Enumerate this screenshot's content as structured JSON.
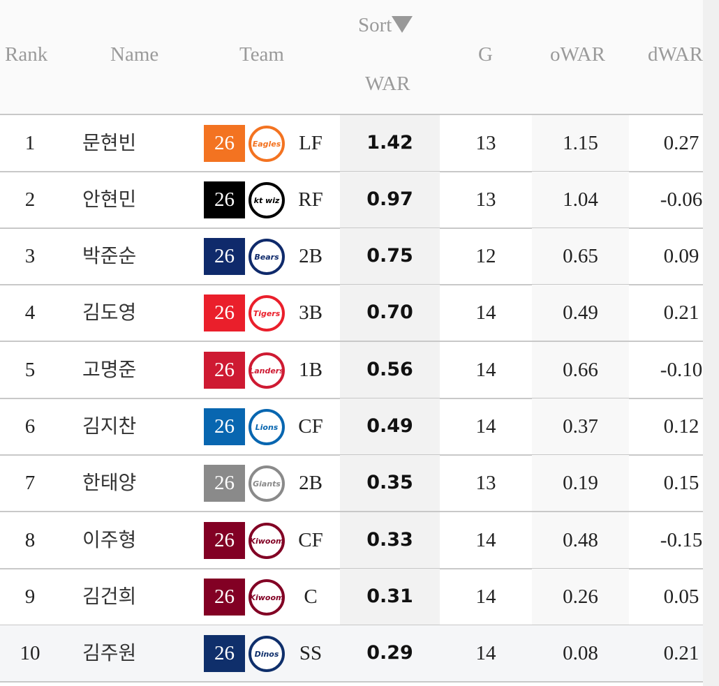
{
  "header": {
    "rank": "Rank",
    "name": "Name",
    "team": "Team",
    "sort": "Sort",
    "sort_icon": "triangle-down",
    "war": "WAR",
    "g": "G",
    "owar": "oWAR",
    "dwar": "dWAR"
  },
  "rows": [
    {
      "rank": "1",
      "name": "문현빈",
      "age": "26",
      "team": "Eagles",
      "team_color": "#f37321",
      "pos": "LF",
      "war": "1.42",
      "g": "13",
      "owar": "1.15",
      "dwar": "0.27"
    },
    {
      "rank": "2",
      "name": "안현민",
      "age": "26",
      "team": "kt wiz",
      "team_color": "#000000",
      "pos": "RF",
      "war": "0.97",
      "g": "13",
      "owar": "1.04",
      "dwar": "-0.06"
    },
    {
      "rank": "3",
      "name": "박준순",
      "age": "26",
      "team": "Bears",
      "team_color": "#0f2a6b",
      "pos": "2B",
      "war": "0.75",
      "g": "12",
      "owar": "0.65",
      "dwar": "0.09"
    },
    {
      "rank": "4",
      "name": "김도영",
      "age": "26",
      "team": "Tigers",
      "team_color": "#ea1f2b",
      "pos": "3B",
      "war": "0.70",
      "g": "14",
      "owar": "0.49",
      "dwar": "0.21"
    },
    {
      "rank": "5",
      "name": "고명준",
      "age": "26",
      "team": "Landers",
      "team_color": "#ce1a32",
      "pos": "1B",
      "war": "0.56",
      "g": "14",
      "owar": "0.66",
      "dwar": "-0.10"
    },
    {
      "rank": "6",
      "name": "김지찬",
      "age": "26",
      "team": "Lions",
      "team_color": "#0866b0",
      "pos": "CF",
      "war": "0.49",
      "g": "14",
      "owar": "0.37",
      "dwar": "0.12"
    },
    {
      "rank": "7",
      "name": "한태양",
      "age": "26",
      "team": "Giants",
      "team_color": "#8a8a8a",
      "pos": "2B",
      "war": "0.35",
      "g": "13",
      "owar": "0.19",
      "dwar": "0.15"
    },
    {
      "rank": "8",
      "name": "이주형",
      "age": "26",
      "team": "Kiwoom",
      "team_color": "#820024",
      "pos": "CF",
      "war": "0.33",
      "g": "14",
      "owar": "0.48",
      "dwar": "-0.15"
    },
    {
      "rank": "9",
      "name": "김건희",
      "age": "26",
      "team": "Kiwoom",
      "team_color": "#820024",
      "pos": "C",
      "war": "0.31",
      "g": "14",
      "owar": "0.26",
      "dwar": "0.05"
    },
    {
      "rank": "10",
      "name": "김주원",
      "age": "26",
      "team": "Dinos",
      "team_color": "#0f2f6b",
      "pos": "SS",
      "war": "0.29",
      "g": "14",
      "owar": "0.08",
      "dwar": "0.21"
    }
  ]
}
